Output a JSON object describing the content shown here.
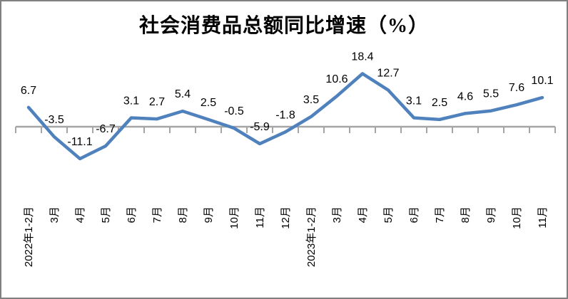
{
  "frame": {
    "border_color": "#808080",
    "background_color": "#FFFFFF"
  },
  "chart_data": {
    "type": "line",
    "title": "社会消费品总额同比增速（%）",
    "categories": [
      "2022年1-2月",
      "3月",
      "4月",
      "5月",
      "6月",
      "7月",
      "8月",
      "9月",
      "10月",
      "11月",
      "12月",
      "2023年1-2月",
      "3月",
      "4月",
      "5月",
      "6月",
      "7月",
      "8月",
      "9月",
      "10月",
      "11月"
    ],
    "values": [
      6.7,
      -3.5,
      -11.1,
      -6.7,
      3.1,
      2.7,
      5.4,
      2.5,
      -0.5,
      -5.9,
      -1.8,
      3.5,
      10.6,
      18.4,
      12.7,
      3.1,
      2.5,
      4.6,
      5.5,
      7.6,
      10.1
    ],
    "data_labels": [
      "6.7",
      "-3.5",
      "-11.1",
      "-6.7",
      "3.1",
      "2.7",
      "5.4",
      "2.5",
      "-0.5",
      "-5.9",
      "-1.8",
      "3.5",
      "10.6",
      "18.4",
      "12.7",
      "3.1",
      "2.5",
      "4.6",
      "5.5",
      "7.6",
      "10.1"
    ],
    "xlabel": "",
    "ylabel": "",
    "ylim": [
      -15,
      22
    ],
    "grid": false,
    "legend": "none",
    "label_position": "above",
    "series_color": "#4F81BD",
    "axis_color": "#A6A6A6",
    "label_color": "#000000"
  }
}
